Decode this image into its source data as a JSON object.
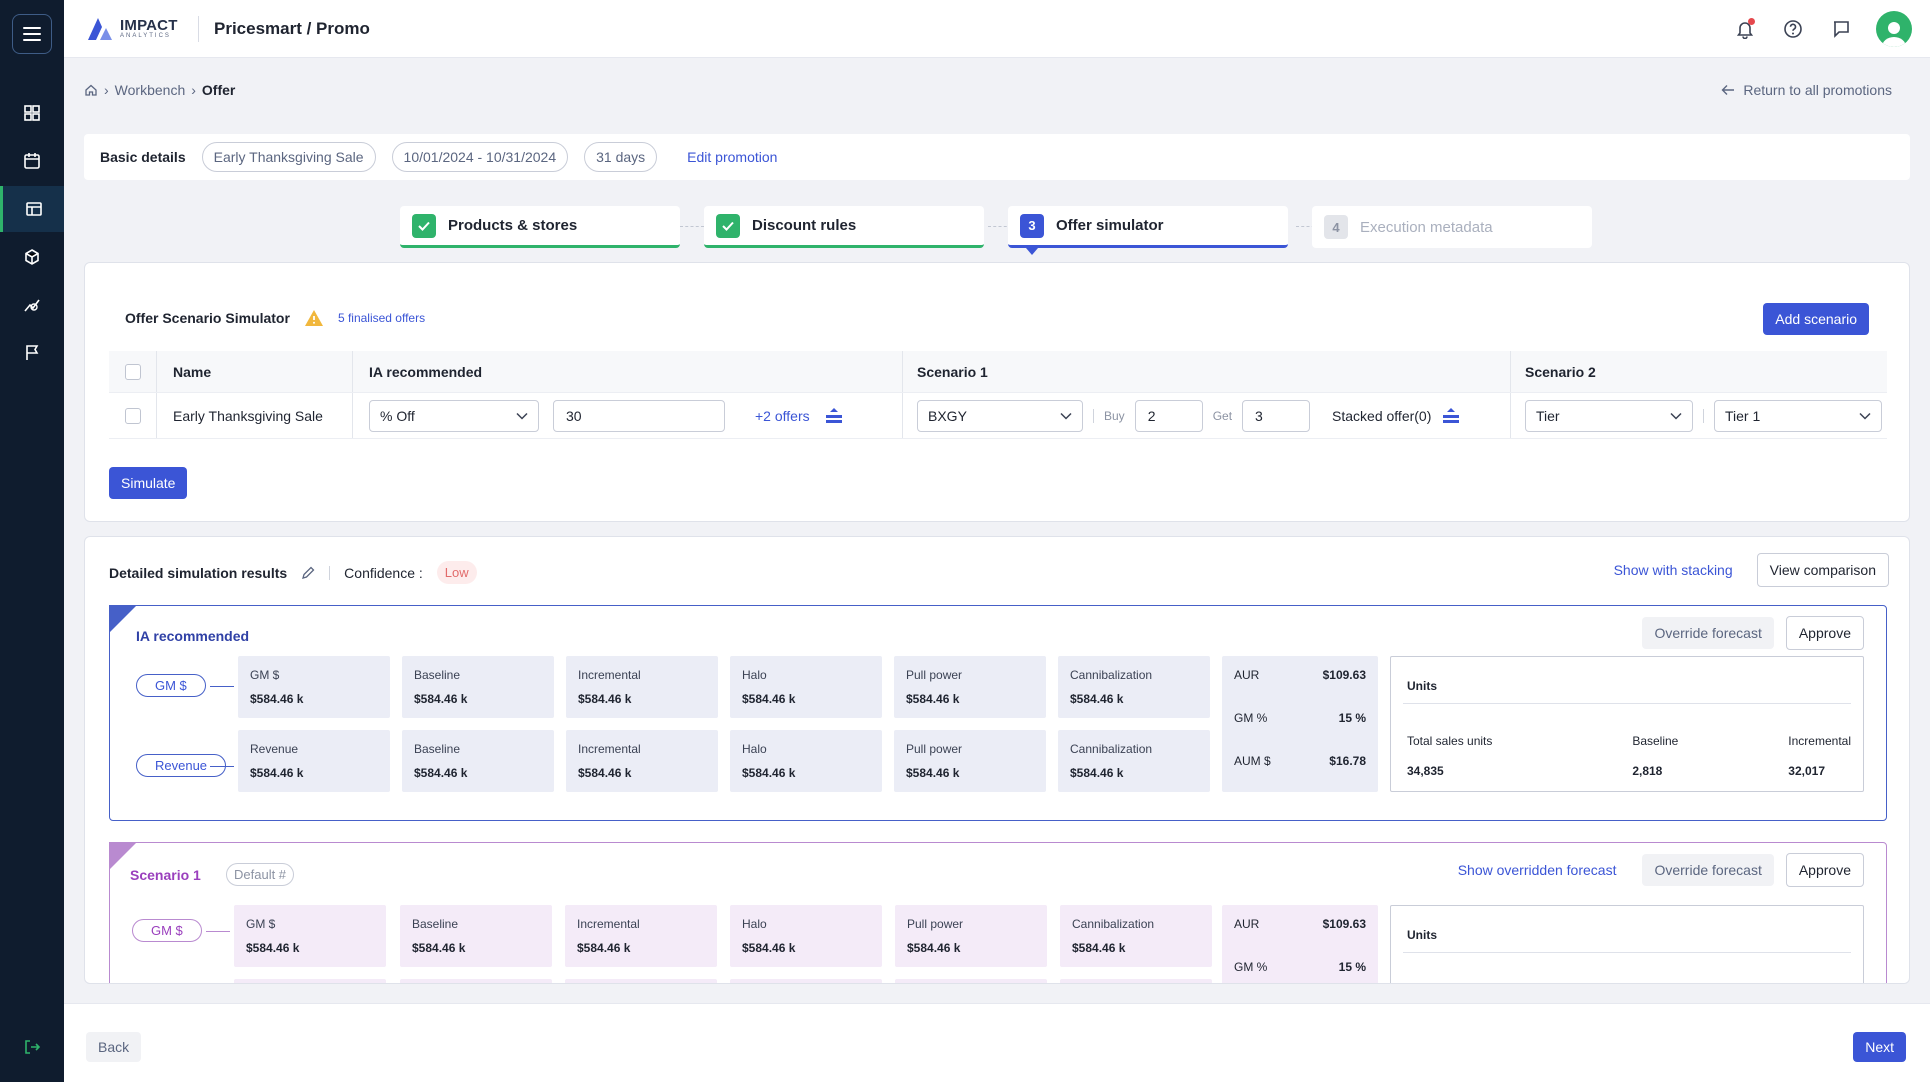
{
  "app": {
    "logo_text": "IMPACT",
    "logo_sub": "ANALYTICS",
    "title": "Pricesmart / Promo"
  },
  "breadcrumb": {
    "items": [
      "Workbench",
      "Offer"
    ],
    "return": "Return to all promotions"
  },
  "basic": {
    "label": "Basic details",
    "name": "Early Thanksgiving Sale",
    "dates": "10/01/2024 - 10/31/2024",
    "days": "31 days",
    "edit": "Edit promotion"
  },
  "steps": [
    {
      "num": "1",
      "label": "Products & stores",
      "state": "done"
    },
    {
      "num": "2",
      "label": "Discount rules",
      "state": "done"
    },
    {
      "num": "3",
      "label": "Offer simulator",
      "state": "active"
    },
    {
      "num": "4",
      "label": "Execution metadata",
      "state": "disabled"
    }
  ],
  "simulator": {
    "title": "Offer Scenario Simulator",
    "finalised": "5 finalised offers",
    "add_scenario": "Add scenario",
    "headers": {
      "name": "Name",
      "ia": "IA recommended",
      "s1": "Scenario 1",
      "s2": "Scenario 2"
    },
    "row": {
      "name": "Early Thanksgiving Sale",
      "ia_type": "% Off",
      "ia_value": "30",
      "ia_more": "+2 offers",
      "s1_type": "BXGY",
      "buy_label": "Buy",
      "buy": "2",
      "get_label": "Get",
      "get": "3",
      "stacked": "Stacked offer(0)",
      "s2_type": "Tier",
      "s2_tier": "Tier 1"
    },
    "simulate": "Simulate"
  },
  "results": {
    "title": "Detailed simulation results",
    "confidence_label": "Confidence :",
    "confidence": "Low",
    "show_stacking": "Show with stacking",
    "view_comparison": "View comparison",
    "ia": {
      "title": "IA recommended",
      "override": "Override forecast",
      "approve": "Approve",
      "tags": [
        "GM $",
        "Revenue"
      ],
      "rows": [
        [
          {
            "l": "GM $",
            "v": "$584.46 k"
          },
          {
            "l": "Baseline",
            "v": "$584.46 k"
          },
          {
            "l": "Incremental",
            "v": "$584.46 k"
          },
          {
            "l": "Halo",
            "v": "$584.46 k"
          },
          {
            "l": "Pull power",
            "v": "$584.46 k"
          },
          {
            "l": "Cannibalization",
            "v": "$584.46 k"
          }
        ],
        [
          {
            "l": "Revenue",
            "v": "$584.46 k"
          },
          {
            "l": "Baseline",
            "v": "$584.46 k"
          },
          {
            "l": "Incremental",
            "v": "$584.46 k"
          },
          {
            "l": "Halo",
            "v": "$584.46 k"
          },
          {
            "l": "Pull power",
            "v": "$584.46 k"
          },
          {
            "l": "Cannibalization",
            "v": "$584.46 k"
          }
        ]
      ],
      "aur": [
        {
          "l": "AUR",
          "v": "$109.63"
        },
        {
          "l": "GM %",
          "v": "15 %"
        },
        {
          "l": "AUM $",
          "v": "$16.78"
        }
      ],
      "units": {
        "title": "Units",
        "total_label": "Total sales units",
        "total": "34,835",
        "base_label": "Baseline",
        "base": "2,818",
        "inc_label": "Incremental",
        "inc": "32,017"
      }
    },
    "s1": {
      "title": "Scenario 1",
      "default": "Default #",
      "show_overridden": "Show overridden forecast",
      "override": "Override forecast",
      "approve": "Approve",
      "tag": "GM $",
      "row": [
        {
          "l": "GM $",
          "v": "$584.46 k"
        },
        {
          "l": "Baseline",
          "v": "$584.46 k"
        },
        {
          "l": "Incremental",
          "v": "$584.46 k"
        },
        {
          "l": "Halo",
          "v": "$584.46 k"
        },
        {
          "l": "Pull power",
          "v": "$584.46 k"
        },
        {
          "l": "Cannibalization",
          "v": "$584.46 k"
        }
      ],
      "aur": [
        {
          "l": "AUR",
          "v": "$109.63"
        },
        {
          "l": "GM %",
          "v": "15 %"
        }
      ],
      "units_title": "Units"
    }
  },
  "footer": {
    "back": "Back",
    "next": "Next"
  }
}
